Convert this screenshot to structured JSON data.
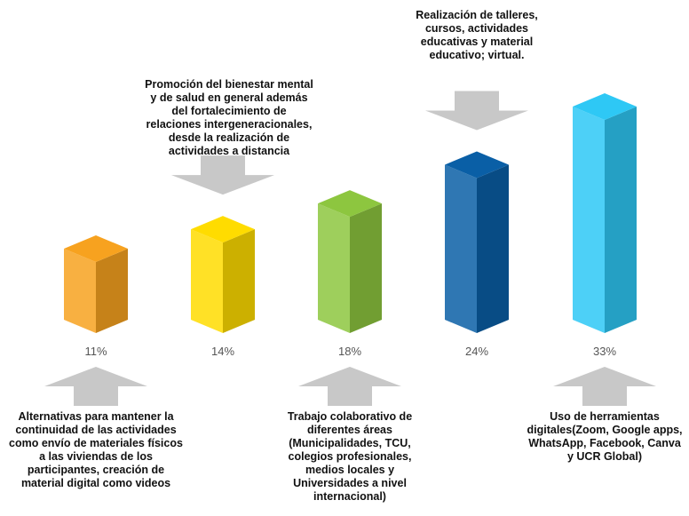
{
  "chart_data": {
    "type": "bar3d",
    "categories": [
      "Alternativas para mantener la continuidad de las actividades como envío de materiales físicos a las viviendas de los participantes, creación de material digital como videos",
      "Promoción del bienestar mental y de salud en general además del fortalecimiento de relaciones intergeneracionales, desde la realización de actividades a distancia",
      "Trabajo colaborativo de diferentes áreas (Municipalidades, TCU, colegios profesionales, medios locales y Universidades a nivel internacional)",
      "Realización de talleres, cursos, actividades educativas y material educativo; virtual.",
      "Uso de herramientas digitales(Zoom, Google apps, WhatsApp, Facebook, Canva y UCR Global)"
    ],
    "values": [
      11,
      14,
      18,
      24,
      33
    ],
    "value_labels": [
      "11%",
      "14%",
      "18%",
      "24%",
      "33%"
    ],
    "colors": [
      "#f7a21f",
      "#ffdc00",
      "#8dc63f",
      "#0a5fa6",
      "#2ec8f5"
    ]
  }
}
